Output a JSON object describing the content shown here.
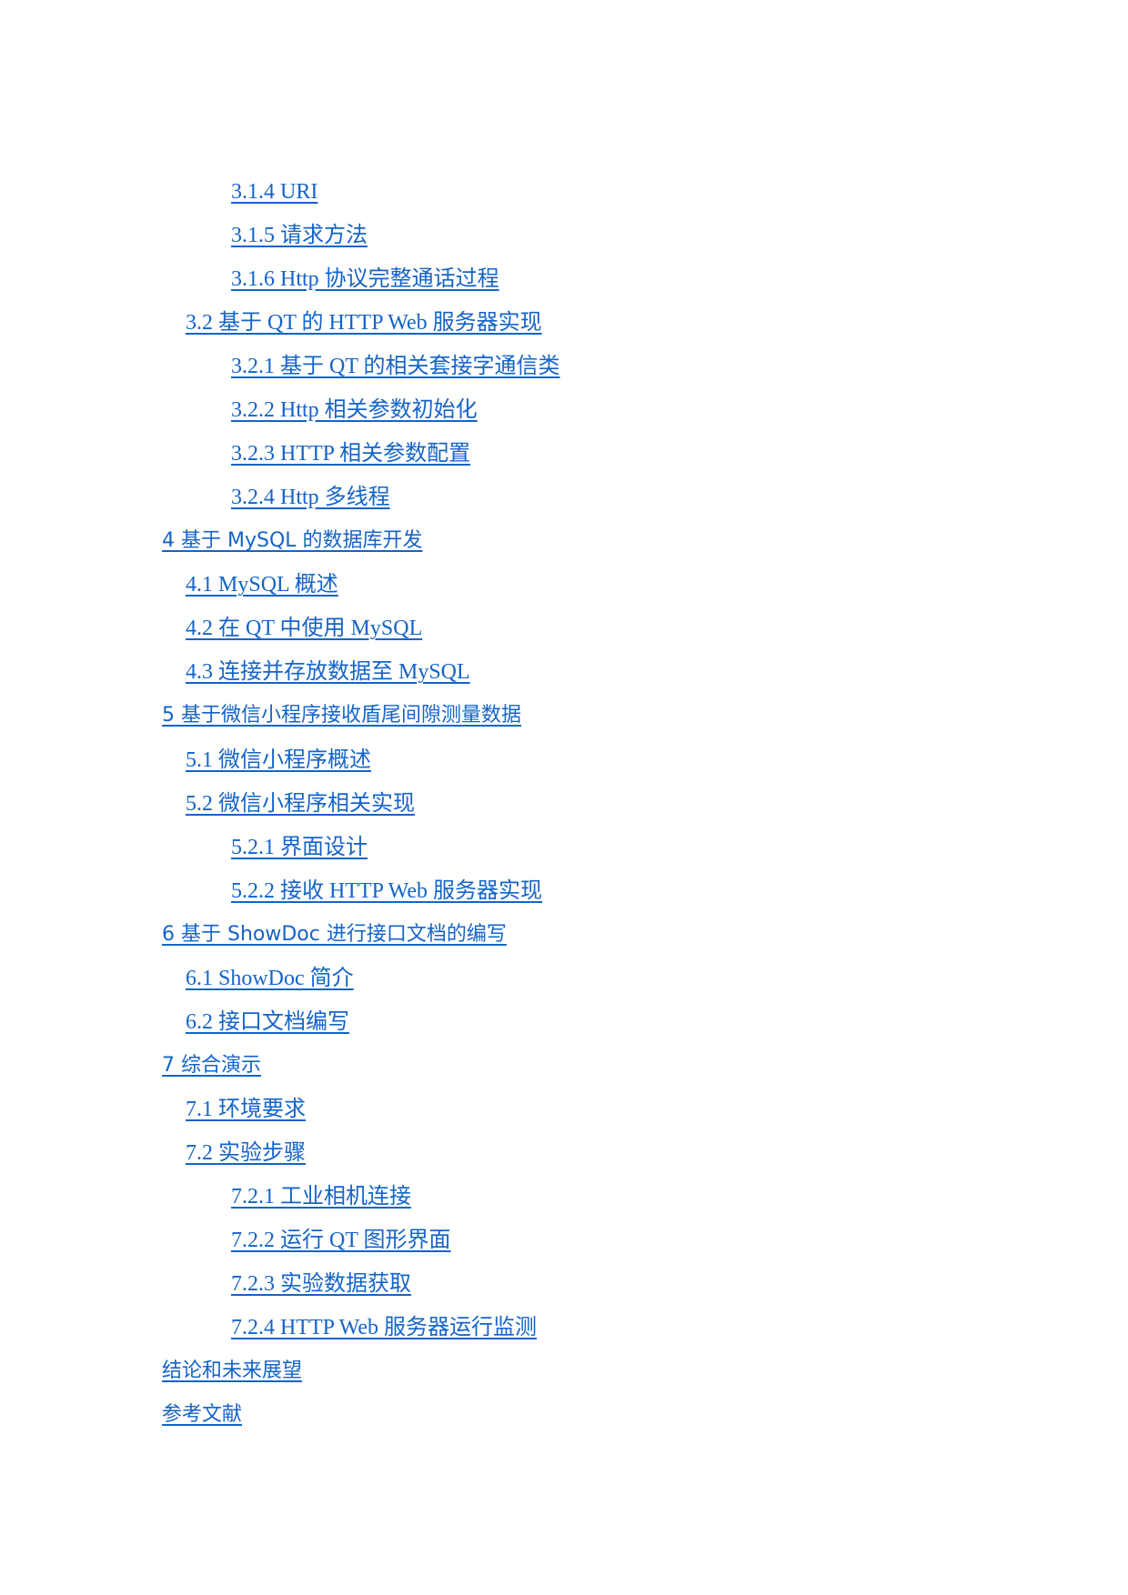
{
  "link_color": "#1464c8",
  "toc": [
    {
      "level": 3,
      "text": "3.1.4 URI"
    },
    {
      "level": 3,
      "text": "3.1.5 请求方法"
    },
    {
      "level": 3,
      "text": "3.1.6 Http 协议完整通话过程"
    },
    {
      "level": 2,
      "text": "3.2 基于 QT 的 HTTP Web 服务器实现"
    },
    {
      "level": 3,
      "text": "3.2.1 基于 QT 的相关套接字通信类"
    },
    {
      "level": 3,
      "text": "3.2.2 Http 相关参数初始化"
    },
    {
      "level": 3,
      "text": "3.2.3 HTTP 相关参数配置"
    },
    {
      "level": 3,
      "text": "3.2.4 Http 多线程"
    },
    {
      "level": 1,
      "text": "4 基于 MySQL 的数据库开发"
    },
    {
      "level": 2,
      "text": "4.1 MySQL 概述"
    },
    {
      "level": 2,
      "text": "4.2 在 QT 中使用 MySQL"
    },
    {
      "level": 2,
      "text": "4.3 连接并存放数据至 MySQL"
    },
    {
      "level": 1,
      "text": "5 基于微信小程序接收盾尾间隙测量数据"
    },
    {
      "level": 2,
      "text": "5.1 微信小程序概述"
    },
    {
      "level": 2,
      "text": "5.2 微信小程序相关实现"
    },
    {
      "level": 3,
      "text": "5.2.1 界面设计"
    },
    {
      "level": 3,
      "text": "5.2.2 接收 HTTP Web 服务器实现"
    },
    {
      "level": 1,
      "text": "6 基于 ShowDoc 进行接口文档的编写"
    },
    {
      "level": 2,
      "text": "6.1 ShowDoc 简介"
    },
    {
      "level": 2,
      "text": "6.2 接口文档编写"
    },
    {
      "level": 1,
      "text": "7 综合演示"
    },
    {
      "level": 2,
      "text": "7.1 环境要求"
    },
    {
      "level": 2,
      "text": "7.2 实验步骤"
    },
    {
      "level": 3,
      "text": "7.2.1 工业相机连接"
    },
    {
      "level": 3,
      "text": "7.2.2 运行 QT 图形界面"
    },
    {
      "level": 3,
      "text": "7.2.3 实验数据获取"
    },
    {
      "level": 3,
      "text": "7.2.4 HTTP Web 服务器运行监测"
    },
    {
      "level": 1,
      "text": "结论和未来展望"
    },
    {
      "level": 1,
      "text": "参考文献"
    }
  ]
}
